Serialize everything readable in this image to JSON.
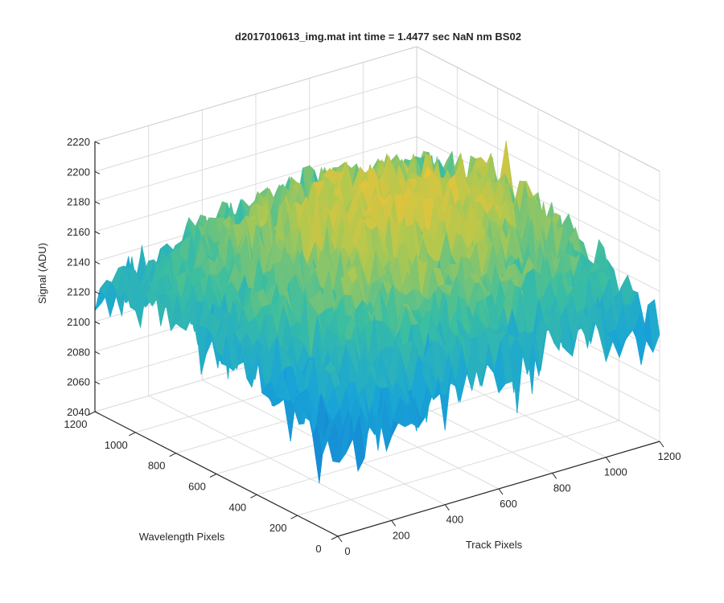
{
  "chart_data": {
    "type": "surface",
    "title": "d2017010613_img.mat int time = 1.4477 sec  NaN nm BS02",
    "xlabel": "Track Pixels",
    "ylabel": "Wavelength Pixels",
    "zlabel": "Signal (ADU)",
    "xlim": [
      0,
      1200
    ],
    "ylim": [
      0,
      1200
    ],
    "zlim": [
      2040,
      2220
    ],
    "x_ticks": [
      "0",
      "200",
      "400",
      "600",
      "800",
      "1000",
      "1200"
    ],
    "y_ticks": [
      "0",
      "200",
      "400",
      "600",
      "800",
      "1000",
      "1200"
    ],
    "z_ticks": [
      "2040",
      "2060",
      "2080",
      "2100",
      "2120",
      "2140",
      "2160",
      "2180",
      "2200",
      "2220"
    ],
    "grid": true,
    "colormap": "parula",
    "colors": {
      "low": "#1a9fd4",
      "mid": "#3cc0a0",
      "high": "#e8c23a",
      "axes": "#262626",
      "grid": "#dcdcdc"
    },
    "surface_samples": {
      "x": [
        0,
        200,
        400,
        600,
        800,
        1000,
        1200
      ],
      "y": [
        0,
        200,
        400,
        600,
        800,
        1000,
        1200
      ],
      "z_mean": [
        [
          2100,
          2110,
          2118,
          2125,
          2128,
          2126,
          2120
        ],
        [
          2108,
          2125,
          2135,
          2142,
          2145,
          2140,
          2130
        ],
        [
          2115,
          2135,
          2150,
          2158,
          2160,
          2152,
          2138
        ],
        [
          2120,
          2142,
          2158,
          2168,
          2170,
          2160,
          2142
        ],
        [
          2122,
          2145,
          2160,
          2170,
          2172,
          2162,
          2145
        ],
        [
          2120,
          2140,
          2155,
          2165,
          2168,
          2158,
          2140
        ],
        [
          2115,
          2132,
          2145,
          2155,
          2160,
          2150,
          2135
        ]
      ]
    }
  }
}
